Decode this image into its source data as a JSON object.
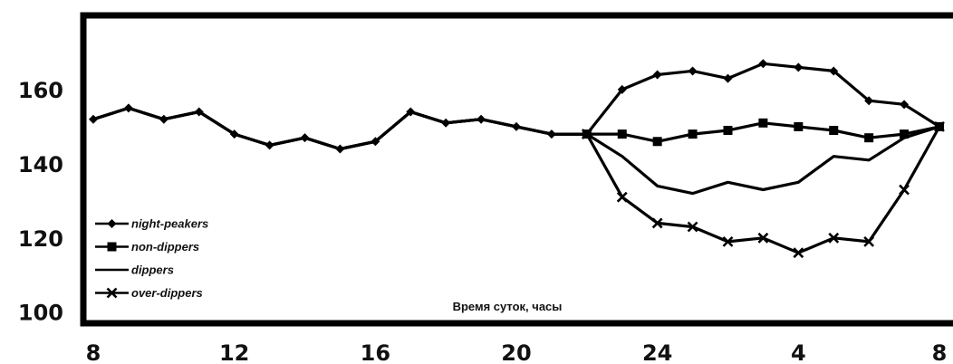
{
  "chart_data": {
    "type": "line",
    "title": "",
    "xlabel": "Время суток, часы",
    "ylabel": "",
    "ylim": [
      97,
      180
    ],
    "yticks": [
      100,
      120,
      140,
      160
    ],
    "xtick_labels": [
      "8",
      "12",
      "16",
      "20",
      "24",
      "4",
      "8"
    ],
    "x_hours": [
      8,
      9,
      10,
      11,
      12,
      13,
      14,
      15,
      16,
      17,
      18,
      19,
      20,
      21,
      22,
      23,
      24,
      25,
      26,
      27,
      28,
      29,
      30,
      31,
      32
    ],
    "shared_day": [
      152,
      155,
      152,
      154,
      148,
      145,
      147,
      144,
      146,
      154,
      151,
      152,
      150,
      148
    ],
    "series": [
      {
        "name": "night-peakers",
        "marker": "diamond",
        "values": [
          152,
          155,
          152,
          154,
          148,
          145,
          147,
          144,
          146,
          154,
          151,
          152,
          150,
          148,
          148,
          160,
          164,
          165,
          163,
          167,
          166,
          165,
          157,
          156,
          150
        ]
      },
      {
        "name": "non-dippers",
        "marker": "square",
        "values": [
          152,
          155,
          152,
          154,
          148,
          145,
          147,
          144,
          146,
          154,
          151,
          152,
          150,
          148,
          148,
          148,
          146,
          148,
          149,
          151,
          150,
          149,
          147,
          148,
          150
        ]
      },
      {
        "name": "dippers",
        "marker": "none",
        "values": [
          152,
          155,
          152,
          154,
          148,
          145,
          147,
          144,
          146,
          154,
          151,
          152,
          150,
          148,
          148,
          142,
          134,
          132,
          135,
          133,
          135,
          142,
          141,
          147,
          150
        ]
      },
      {
        "name": "over-dippers",
        "marker": "x",
        "values": [
          152,
          155,
          152,
          154,
          148,
          145,
          147,
          144,
          146,
          154,
          151,
          152,
          150,
          148,
          148,
          131,
          124,
          123,
          119,
          120,
          116,
          120,
          119,
          133,
          150
        ]
      }
    ],
    "grid": false,
    "legend_position": "bottom-left"
  }
}
